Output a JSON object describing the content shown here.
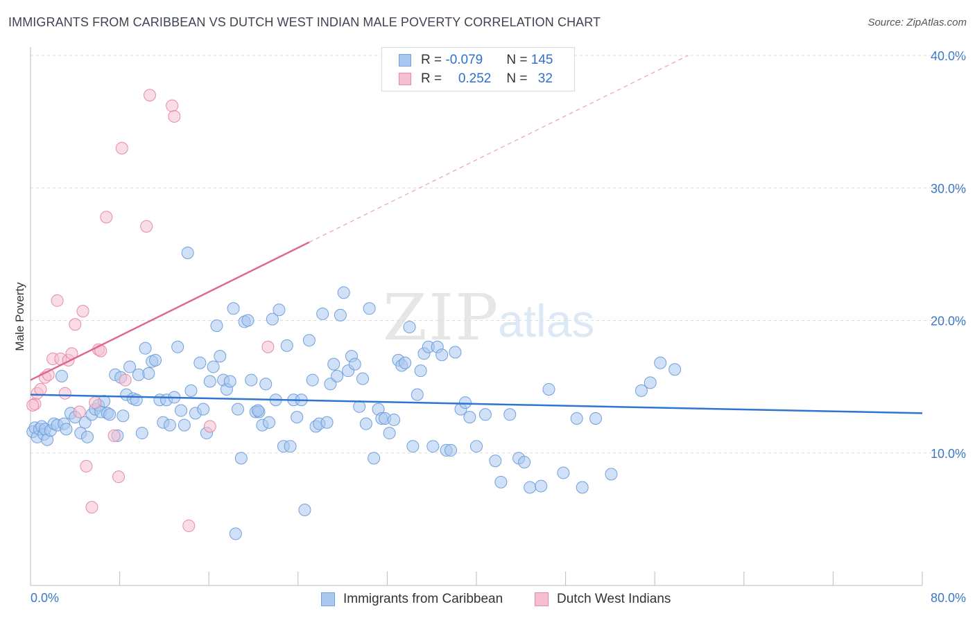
{
  "title": "IMMIGRANTS FROM CARIBBEAN VS DUTCH WEST INDIAN MALE POVERTY CORRELATION CHART",
  "source": "Source: ZipAtlas.com",
  "watermark": {
    "a": "ZIP",
    "b": "atlas"
  },
  "legend": {
    "rows": [
      {
        "r_label": "R = ",
        "r_value": "-0.079",
        "n_label": "N = ",
        "n_value": "145",
        "color": "#a9c8f0",
        "border": "#6f9fdc"
      },
      {
        "r_label": "R = ",
        "r_value": "0.252",
        "n_label": "N = ",
        "n_value": "32",
        "color": "#f6bfd0",
        "border": "#e58aa6"
      }
    ]
  },
  "bottom_legend": {
    "items": [
      {
        "label": "Immigrants from Caribbean",
        "color": "#a9c8f0",
        "border": "#6f9fdc"
      },
      {
        "label": "Dutch West Indians",
        "color": "#f6bfd0",
        "border": "#e58aa6"
      }
    ]
  },
  "chart_data": {
    "type": "scatter",
    "title": "IMMIGRANTS FROM CARIBBEAN VS DUTCH WEST INDIAN MALE POVERTY CORRELATION CHART",
    "xlabel": "",
    "ylabel": "Male Poverty",
    "xlim": [
      0,
      80
    ],
    "ylim": [
      0,
      40
    ],
    "x_tick_labels": [
      "0.0%",
      "80.0%"
    ],
    "y_ticks": [
      10,
      20,
      30,
      40
    ],
    "y_tick_labels": [
      "10.0%",
      "20.0%",
      "30.0%",
      "40.0%"
    ],
    "grid": "horizontal dashed",
    "legend_position": "top-center",
    "series": [
      {
        "name": "Immigrants from Caribbean",
        "color": "#a9c8f0",
        "trend": {
          "x0": 0,
          "y0": 14.4,
          "x1": 80,
          "y1": 13.0,
          "color": "#2f74d0"
        },
        "points": [
          [
            0.2,
            11.6
          ],
          [
            0.4,
            11.9
          ],
          [
            0.6,
            11.2
          ],
          [
            0.8,
            11.8
          ],
          [
            1.0,
            12.0
          ],
          [
            1.2,
            11.4
          ],
          [
            1.3,
            11.8
          ],
          [
            1.5,
            11.0
          ],
          [
            1.8,
            11.7
          ],
          [
            2.1,
            12.2
          ],
          [
            2.4,
            12.1
          ],
          [
            2.8,
            15.8
          ],
          [
            3.0,
            12.2
          ],
          [
            3.2,
            11.8
          ],
          [
            3.6,
            13.0
          ],
          [
            4.0,
            12.7
          ],
          [
            4.5,
            11.5
          ],
          [
            4.9,
            12.3
          ],
          [
            5.1,
            11.2
          ],
          [
            5.5,
            12.9
          ],
          [
            5.8,
            13.3
          ],
          [
            6.1,
            13.6
          ],
          [
            6.3,
            13.1
          ],
          [
            6.6,
            13.9
          ],
          [
            6.9,
            13.0
          ],
          [
            7.1,
            12.9
          ],
          [
            7.6,
            15.9
          ],
          [
            7.8,
            11.3
          ],
          [
            8.1,
            15.7
          ],
          [
            8.3,
            12.8
          ],
          [
            8.6,
            14.4
          ],
          [
            8.9,
            16.5
          ],
          [
            9.2,
            14.1
          ],
          [
            9.5,
            14.0
          ],
          [
            9.7,
            15.9
          ],
          [
            10.0,
            11.5
          ],
          [
            10.3,
            17.9
          ],
          [
            10.6,
            16.0
          ],
          [
            10.9,
            16.9
          ],
          [
            11.2,
            17.0
          ],
          [
            11.6,
            14.0
          ],
          [
            11.9,
            12.3
          ],
          [
            12.2,
            14.0
          ],
          [
            12.5,
            12.1
          ],
          [
            12.9,
            14.2
          ],
          [
            13.2,
            18.0
          ],
          [
            13.5,
            13.2
          ],
          [
            13.8,
            12.1
          ],
          [
            14.1,
            25.1
          ],
          [
            14.4,
            14.7
          ],
          [
            14.8,
            13.0
          ],
          [
            15.2,
            16.8
          ],
          [
            15.5,
            13.3
          ],
          [
            15.8,
            11.5
          ],
          [
            16.1,
            15.4
          ],
          [
            16.4,
            16.5
          ],
          [
            16.7,
            19.6
          ],
          [
            17.0,
            17.3
          ],
          [
            17.3,
            15.5
          ],
          [
            17.6,
            14.8
          ],
          [
            17.9,
            15.4
          ],
          [
            18.2,
            20.9
          ],
          [
            18.6,
            13.3
          ],
          [
            18.9,
            9.6
          ],
          [
            19.2,
            19.9
          ],
          [
            19.5,
            20.0
          ],
          [
            19.8,
            15.5
          ],
          [
            20.2,
            13.1
          ],
          [
            20.5,
            13.1
          ],
          [
            20.8,
            12.1
          ],
          [
            21.1,
            15.2
          ],
          [
            21.4,
            12.3
          ],
          [
            21.7,
            20.1
          ],
          [
            22.0,
            14.0
          ],
          [
            22.3,
            20.8
          ],
          [
            22.7,
            10.5
          ],
          [
            23.0,
            18.1
          ],
          [
            23.3,
            10.5
          ],
          [
            23.6,
            14.0
          ],
          [
            23.9,
            12.7
          ],
          [
            24.3,
            14.0
          ],
          [
            24.6,
            5.7
          ],
          [
            25.0,
            18.5
          ],
          [
            25.3,
            15.5
          ],
          [
            25.6,
            12.0
          ],
          [
            25.9,
            12.2
          ],
          [
            26.2,
            20.5
          ],
          [
            26.6,
            12.3
          ],
          [
            26.9,
            15.2
          ],
          [
            27.2,
            16.7
          ],
          [
            27.5,
            15.8
          ],
          [
            27.8,
            20.4
          ],
          [
            28.1,
            22.1
          ],
          [
            28.5,
            16.2
          ],
          [
            28.8,
            17.3
          ],
          [
            29.1,
            16.7
          ],
          [
            29.5,
            13.5
          ],
          [
            29.8,
            15.6
          ],
          [
            30.1,
            12.2
          ],
          [
            30.4,
            20.9
          ],
          [
            30.8,
            9.6
          ],
          [
            31.2,
            13.3
          ],
          [
            31.5,
            12.6
          ],
          [
            31.8,
            12.6
          ],
          [
            32.2,
            11.5
          ],
          [
            32.6,
            12.5
          ],
          [
            33.0,
            17.0
          ],
          [
            33.3,
            16.6
          ],
          [
            33.6,
            16.8
          ],
          [
            34.0,
            19.5
          ],
          [
            34.3,
            10.5
          ],
          [
            34.7,
            14.4
          ],
          [
            35.0,
            16.2
          ],
          [
            35.3,
            17.5
          ],
          [
            35.7,
            18.0
          ],
          [
            36.1,
            10.5
          ],
          [
            36.5,
            18.0
          ],
          [
            36.9,
            17.4
          ],
          [
            37.3,
            10.2
          ],
          [
            37.7,
            10.2
          ],
          [
            38.1,
            17.6
          ],
          [
            38.6,
            13.3
          ],
          [
            39.0,
            13.8
          ],
          [
            39.4,
            12.7
          ],
          [
            40.0,
            10.5
          ],
          [
            40.8,
            12.9
          ],
          [
            41.7,
            9.4
          ],
          [
            42.2,
            7.8
          ],
          [
            43.0,
            12.9
          ],
          [
            43.8,
            9.6
          ],
          [
            44.3,
            9.3
          ],
          [
            44.8,
            7.4
          ],
          [
            45.8,
            7.5
          ],
          [
            46.5,
            14.8
          ],
          [
            47.8,
            8.5
          ],
          [
            49.0,
            12.6
          ],
          [
            49.5,
            7.4
          ],
          [
            50.7,
            12.6
          ],
          [
            52.1,
            8.4
          ],
          [
            54.8,
            14.7
          ],
          [
            55.6,
            15.3
          ],
          [
            56.5,
            16.8
          ],
          [
            57.8,
            16.3
          ],
          [
            18.4,
            3.9
          ],
          [
            20.4,
            13.2
          ]
        ]
      },
      {
        "name": "Dutch West Indians",
        "color": "#f6bfd0",
        "trend": {
          "x0": 0,
          "y0": 15.5,
          "x1": 25.0,
          "y1": 25.9,
          "dashed_to": {
            "x": 59.0,
            "y": 40.0
          },
          "color": "#e06690"
        },
        "points": [
          [
            0.4,
            13.7
          ],
          [
            0.6,
            14.5
          ],
          [
            0.9,
            14.8
          ],
          [
            1.3,
            15.7
          ],
          [
            1.6,
            15.9
          ],
          [
            2.0,
            17.1
          ],
          [
            2.4,
            21.5
          ],
          [
            2.7,
            17.1
          ],
          [
            3.1,
            14.5
          ],
          [
            3.4,
            17.0
          ],
          [
            3.7,
            17.5
          ],
          [
            4.0,
            19.7
          ],
          [
            4.4,
            13.1
          ],
          [
            4.7,
            20.7
          ],
          [
            5.0,
            9.0
          ],
          [
            5.5,
            5.9
          ],
          [
            5.8,
            13.8
          ],
          [
            6.1,
            17.8
          ],
          [
            6.3,
            17.7
          ],
          [
            6.8,
            27.8
          ],
          [
            7.5,
            11.3
          ],
          [
            7.9,
            8.2
          ],
          [
            8.2,
            33.0
          ],
          [
            8.5,
            15.5
          ],
          [
            10.4,
            27.1
          ],
          [
            10.7,
            37.0
          ],
          [
            12.7,
            36.2
          ],
          [
            12.9,
            35.4
          ],
          [
            14.2,
            4.5
          ],
          [
            16.1,
            12.0
          ],
          [
            21.3,
            18.0
          ],
          [
            0.2,
            13.6
          ]
        ]
      }
    ]
  }
}
